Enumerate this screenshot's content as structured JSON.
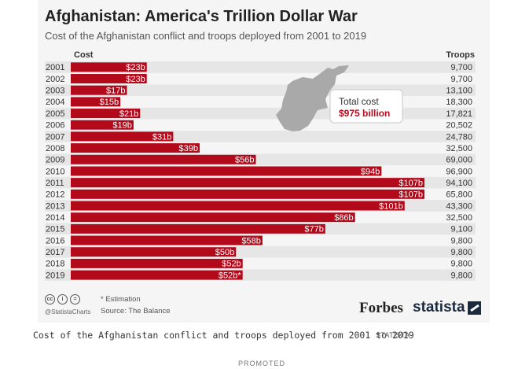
{
  "header": {
    "title": "Afghanistan: America's Trillion Dollar War",
    "subtitle": "Cost of the Afghanistan conflict and troops deployed from 2001 to 2019"
  },
  "chart_data": {
    "type": "bar",
    "orientation": "horizontal",
    "title": "Afghanistan: America's Trillion Dollar War",
    "cost_header": "Cost",
    "troops_header": "Troops",
    "categories": [
      "2001",
      "2002",
      "2003",
      "2004",
      "2005",
      "2006",
      "2007",
      "2008",
      "2009",
      "2010",
      "2011",
      "2012",
      "2013",
      "2014",
      "2015",
      "2016",
      "2017",
      "2018",
      "2019"
    ],
    "series": [
      {
        "name": "Cost (billion USD)",
        "values": [
          23,
          23,
          17,
          15,
          21,
          19,
          31,
          39,
          56,
          94,
          107,
          107,
          101,
          86,
          77,
          58,
          50,
          52,
          52
        ],
        "labels": [
          "$23b",
          "$23b",
          "$17b",
          "$15b",
          "$21b",
          "$19b",
          "$31b",
          "$39b",
          "$56b",
          "$94b",
          "$107b",
          "$107b",
          "$101b",
          "$86b",
          "$77b",
          "$58b",
          "$50b",
          "$52b",
          "$52b*"
        ]
      },
      {
        "name": "Troops",
        "values": [
          9700,
          9700,
          13100,
          18300,
          17821,
          20502,
          24780,
          32500,
          69000,
          96900,
          94100,
          65800,
          43300,
          32500,
          9100,
          9800,
          9800,
          9800,
          9800
        ],
        "labels": [
          "9,700",
          "9,700",
          "13,100",
          "18,300",
          "17,821",
          "20,502",
          "24,780",
          "32,500",
          "69,000",
          "96,900",
          "94,100",
          "65,800",
          "43,300",
          "32,500",
          "9,100",
          "9,800",
          "9,800",
          "9,800",
          "9,800"
        ]
      }
    ],
    "xlim": [
      0,
      107
    ],
    "bar_color": "#b30a1b",
    "annotation": {
      "label": "Total cost",
      "value": "$975 billion"
    }
  },
  "footer": {
    "note": "* Estimation",
    "source": "Source: The Balance",
    "handle": "@StatistaCharts",
    "license_icons": [
      "cc",
      "i",
      "="
    ],
    "forbes": "Forbes",
    "statista": "statista"
  },
  "caption": {
    "text": "Cost of the Afghanistan conflict and troops deployed from 2001 to 2019",
    "source": "STATISTA",
    "promoted": "PROMOTED"
  },
  "colors": {
    "bar": "#b30a1b",
    "accent": "#b30a1b",
    "row_stripe": "#e6e6e6",
    "card": "#f5f5f5"
  }
}
